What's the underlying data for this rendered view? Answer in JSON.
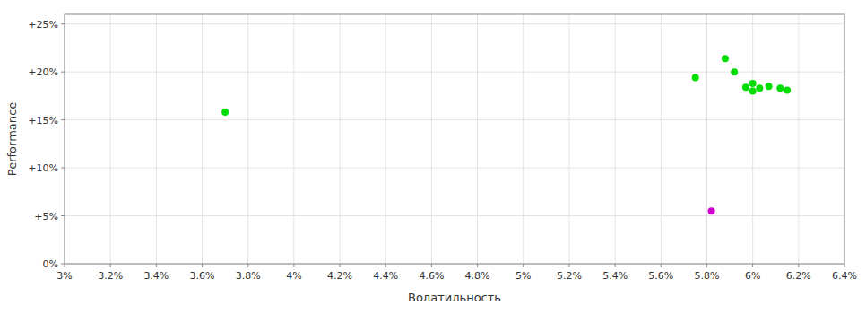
{
  "chart_data": {
    "type": "scatter",
    "x_label": "Волатильность",
    "y_label": "Performance",
    "xlim": [
      0.03,
      0.064
    ],
    "ylim": [
      0.0,
      0.26
    ],
    "xticks": [
      {
        "value": 0.03,
        "label": "3%"
      },
      {
        "value": 0.032,
        "label": "3.2%"
      },
      {
        "value": 0.034,
        "label": "3.4%"
      },
      {
        "value": 0.036,
        "label": "3.6%"
      },
      {
        "value": 0.038,
        "label": "3.8%"
      },
      {
        "value": 0.04,
        "label": "4%"
      },
      {
        "value": 0.042,
        "label": "4.2%"
      },
      {
        "value": 0.044,
        "label": "4.4%"
      },
      {
        "value": 0.046,
        "label": "4.6%"
      },
      {
        "value": 0.048,
        "label": "4.8%"
      },
      {
        "value": 0.05,
        "label": "5%"
      },
      {
        "value": 0.052,
        "label": "5.2%"
      },
      {
        "value": 0.054,
        "label": "5.4%"
      },
      {
        "value": 0.056,
        "label": "5.6%"
      },
      {
        "value": 0.058,
        "label": "5.8%"
      },
      {
        "value": 0.06,
        "label": "6%"
      },
      {
        "value": 0.062,
        "label": "6.2%"
      },
      {
        "value": 0.064,
        "label": "6.4%"
      }
    ],
    "yticks": [
      {
        "value": 0.0,
        "label": "0%"
      },
      {
        "value": 0.05,
        "label": "+5%"
      },
      {
        "value": 0.1,
        "label": "+10%"
      },
      {
        "value": 0.15,
        "label": "+15%"
      },
      {
        "value": 0.2,
        "label": "+20%"
      },
      {
        "value": 0.25,
        "label": "+25%"
      }
    ],
    "grid": true,
    "series": [
      {
        "color": "#00dd00",
        "x": [
          0.037,
          0.0575,
          0.0588,
          0.0592,
          0.0597,
          0.06,
          0.0603,
          0.0607,
          0.0612,
          0.06,
          0.0615
        ],
        "values": [
          0.158,
          0.194,
          0.214,
          0.2,
          0.184,
          0.18,
          0.183,
          0.185,
          0.183,
          0.188,
          0.181
        ]
      },
      {
        "color": "#cc00cc",
        "x": [
          0.0582
        ],
        "values": [
          0.055
        ]
      }
    ]
  }
}
